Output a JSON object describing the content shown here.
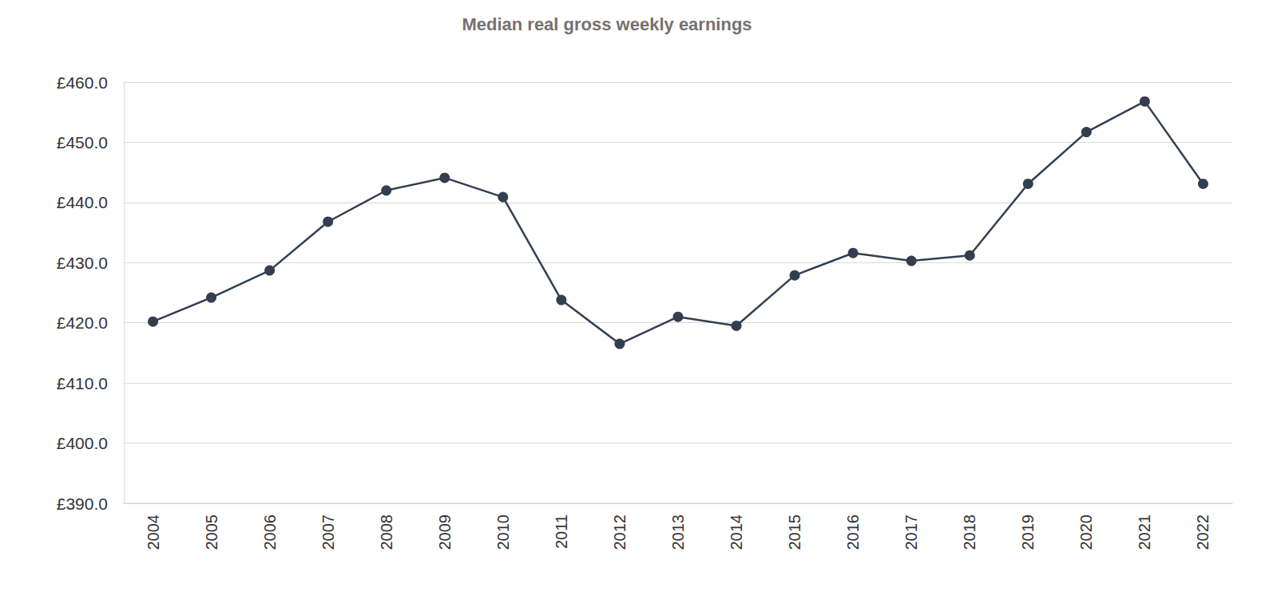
{
  "chart_data": {
    "type": "line",
    "title": "Median real gross weekly earnings",
    "categories": [
      "2004",
      "2005",
      "2006",
      "2007",
      "2008",
      "2009",
      "2010",
      "2011",
      "2012",
      "2013",
      "2014",
      "2015",
      "2016",
      "2017",
      "2018",
      "2019",
      "2020",
      "2021",
      "2022"
    ],
    "values": [
      420.2,
      424.2,
      428.7,
      436.8,
      442.0,
      444.1,
      440.9,
      423.8,
      416.5,
      421.0,
      419.5,
      427.9,
      431.6,
      430.3,
      431.2,
      443.1,
      451.7,
      456.8,
      443.1
    ],
    "color": "#333f50",
    "marker": "circle",
    "ylim": [
      390,
      460
    ],
    "yticks": [
      {
        "value": 390,
        "label": "£390.0"
      },
      {
        "value": 400,
        "label": "£400.0"
      },
      {
        "value": 410,
        "label": "£410.0"
      },
      {
        "value": 420,
        "label": "£420.0"
      },
      {
        "value": 430,
        "label": "£430.0"
      },
      {
        "value": 440,
        "label": "£440.0"
      },
      {
        "value": 450,
        "label": "£450.0"
      },
      {
        "value": 460,
        "label": "£460.0"
      }
    ],
    "grid": true
  }
}
